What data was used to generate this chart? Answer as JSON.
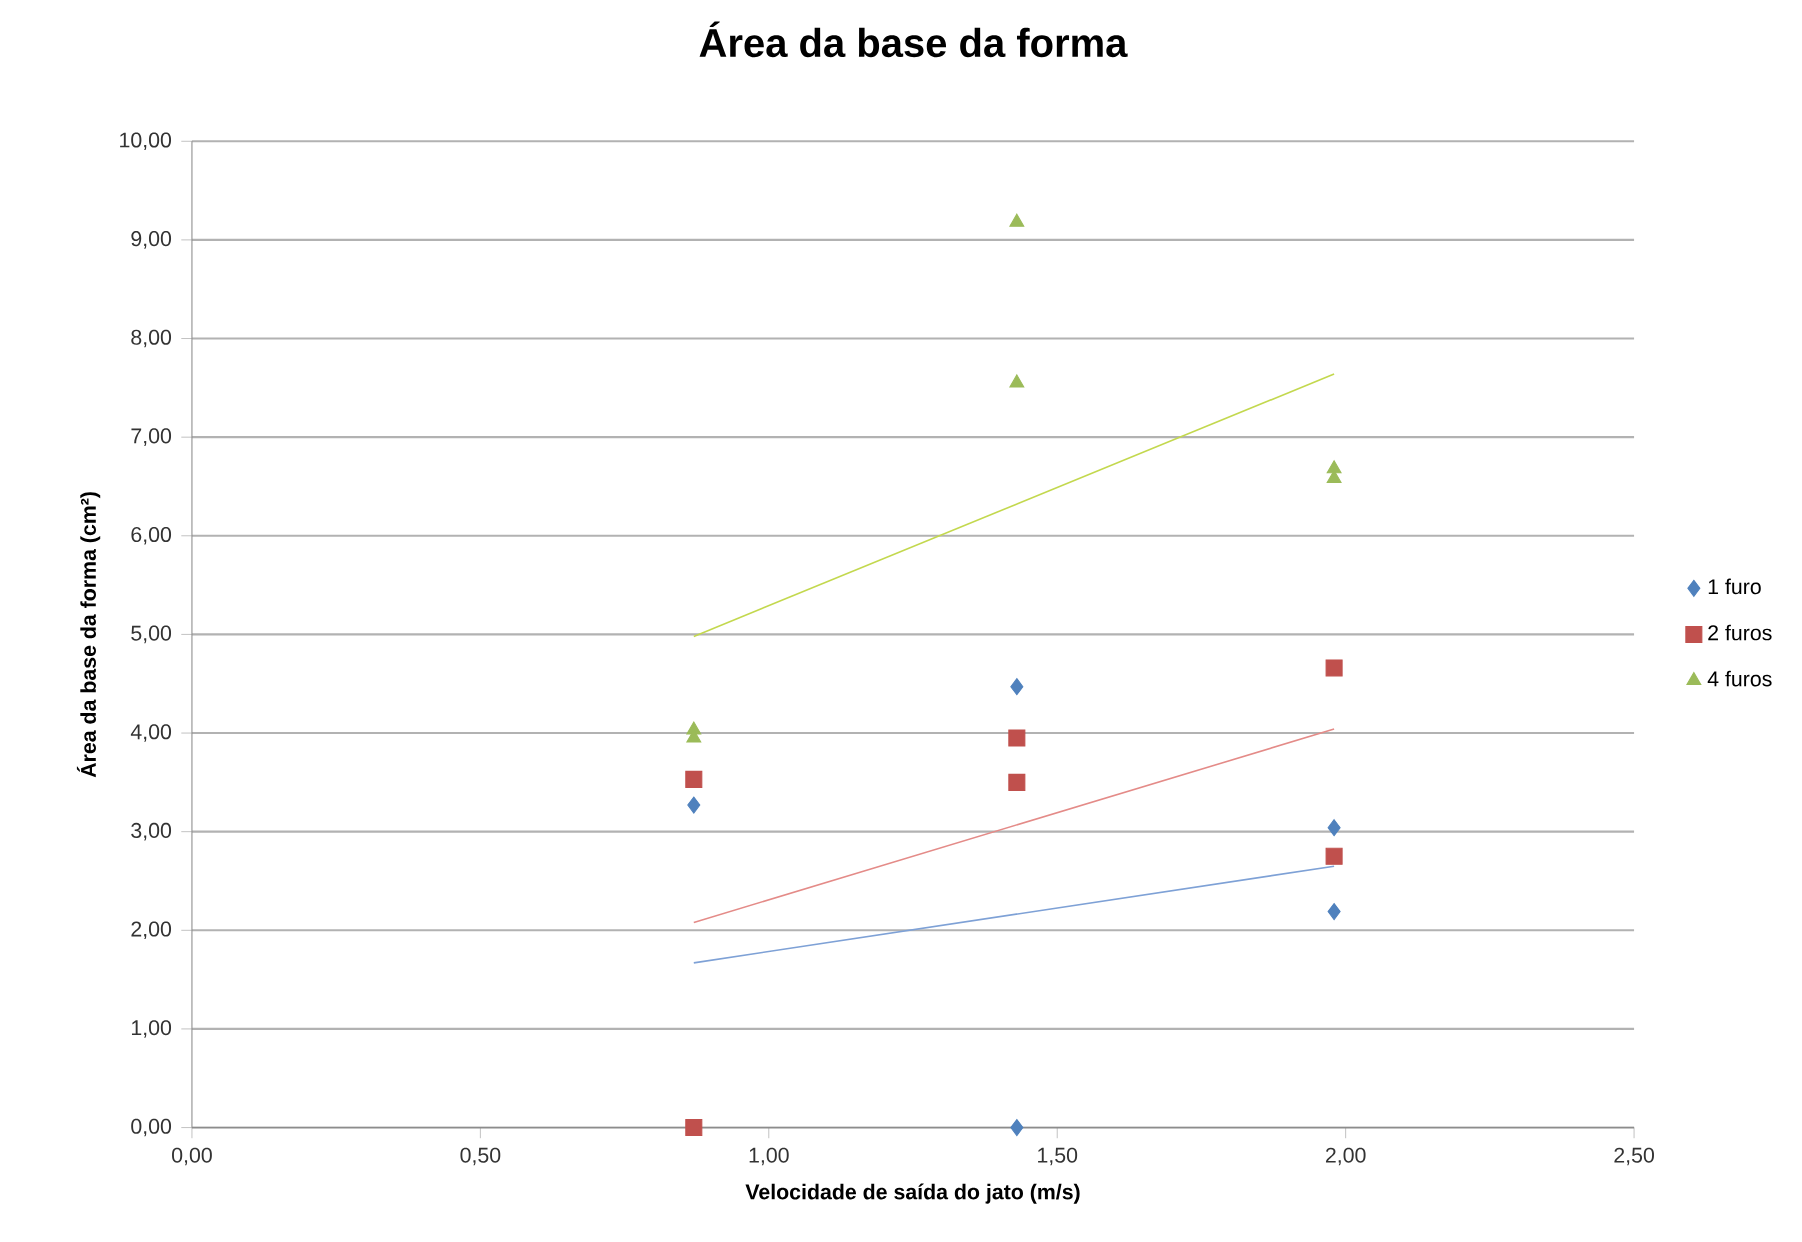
{
  "chart_data": {
    "type": "scatter",
    "title": "Área da base da forma",
    "xlabel": "Velocidade de saída do jato (m/s)",
    "ylabel": "Área da base da forma (cm²)",
    "xlim": [
      0,
      2.5
    ],
    "ylim": [
      0,
      10
    ],
    "xticks": [
      {
        "value": 0,
        "label": "0,00"
      },
      {
        "value": 0.5,
        "label": "0,50"
      },
      {
        "value": 1,
        "label": "1,00"
      },
      {
        "value": 1.5,
        "label": "1,50"
      },
      {
        "value": 2,
        "label": "2,00"
      },
      {
        "value": 2.5,
        "label": "2,50"
      }
    ],
    "yticks": [
      {
        "value": 0,
        "label": "0,00"
      },
      {
        "value": 1,
        "label": "1,00"
      },
      {
        "value": 2,
        "label": "2,00"
      },
      {
        "value": 3,
        "label": "3,00"
      },
      {
        "value": 4,
        "label": "4,00"
      },
      {
        "value": 5,
        "label": "5,00"
      },
      {
        "value": 6,
        "label": "6,00"
      },
      {
        "value": 7,
        "label": "7,00"
      },
      {
        "value": 8,
        "label": "8,00"
      },
      {
        "value": 9,
        "label": "9,00"
      },
      {
        "value": 10,
        "label": "10,00"
      }
    ],
    "grid": "y",
    "legend": "right",
    "series": [
      {
        "name": "1 furo",
        "color": "#4f81bd",
        "marker": "diamond",
        "x": [
          0.87,
          1.43,
          1.43,
          1.98,
          1.98
        ],
        "values": [
          3.27,
          4.47,
          0.0,
          3.04,
          2.19
        ]
      },
      {
        "name": "2 furos",
        "color": "#c0504d",
        "marker": "square",
        "x": [
          0.87,
          0.87,
          1.43,
          1.43,
          1.98,
          1.98
        ],
        "values": [
          3.53,
          0.0,
          3.95,
          3.5,
          4.66,
          2.75
        ]
      },
      {
        "name": "4 furos",
        "color": "#9bbb59",
        "marker": "triangle",
        "x": [
          0.87,
          0.87,
          1.43,
          1.43,
          1.98,
          1.98
        ],
        "values": [
          4.03,
          3.95,
          9.18,
          7.55,
          6.68,
          6.58
        ]
      },
      {
        "type": "line",
        "color": "#7ea1d6",
        "marker": "none",
        "x": [
          0.87,
          1.98
        ],
        "values": [
          1.67,
          2.65
        ]
      },
      {
        "type": "line",
        "color": "#e48b88",
        "marker": "none",
        "x": [
          0.87,
          1.98
        ],
        "values": [
          2.08,
          4.04
        ]
      },
      {
        "type": "line",
        "color": "#c3d84e",
        "marker": "none",
        "x": [
          0.87,
          1.98
        ],
        "values": [
          4.98,
          7.64
        ]
      }
    ]
  }
}
